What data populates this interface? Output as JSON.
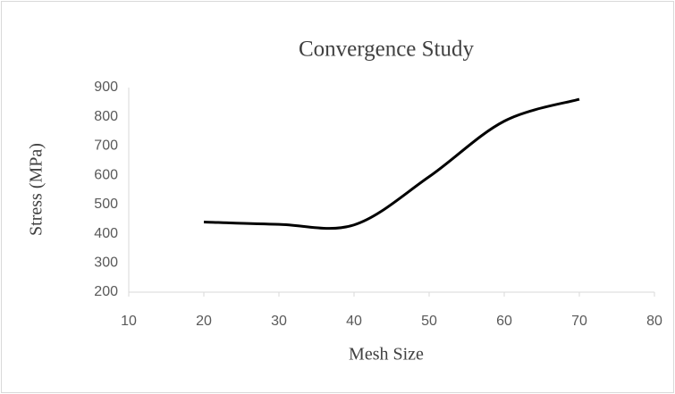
{
  "chart_data": {
    "type": "line",
    "title": "Convergence Study",
    "x_label": "Mesh Size",
    "y_label": "Stress (MPa)",
    "x": [
      20,
      30,
      40,
      50,
      60,
      70
    ],
    "series": [
      {
        "name": "Stress",
        "color": "#000000",
        "values": [
          440,
          432,
          430,
          595,
          785,
          860
        ]
      }
    ],
    "xlim": [
      10,
      80
    ],
    "xticks": [
      10,
      20,
      30,
      40,
      50,
      60,
      70,
      80
    ],
    "ylim": [
      200,
      900
    ],
    "yticks": [
      200,
      300,
      400,
      500,
      600,
      700,
      800,
      900
    ],
    "smooth": true
  }
}
